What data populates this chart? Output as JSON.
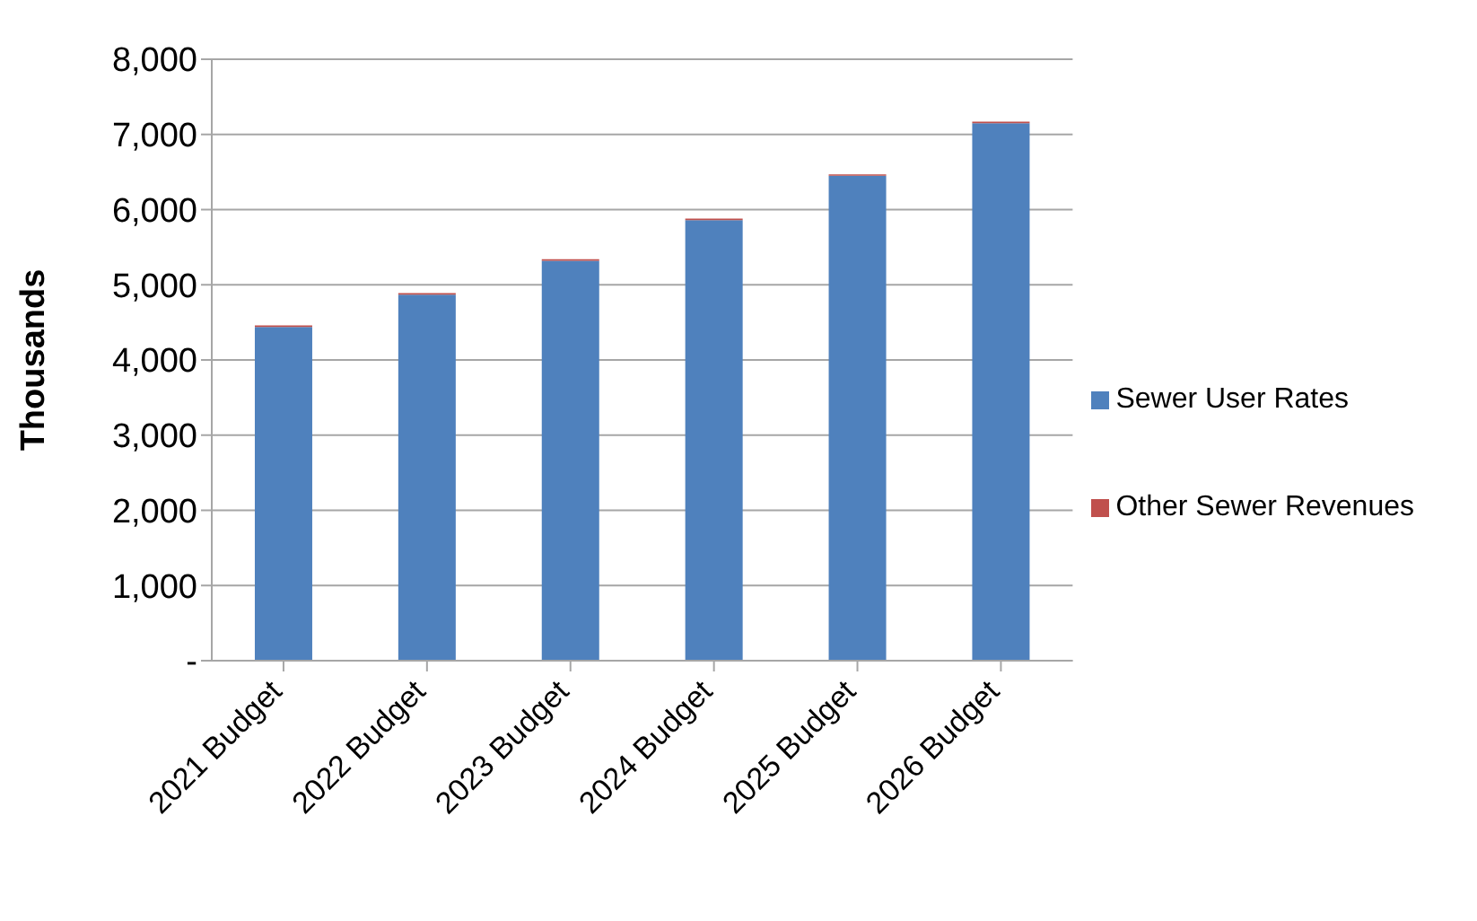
{
  "chart_data": {
    "type": "bar",
    "ylabel": "Thousands",
    "categories": [
      "2021 Budget",
      "2022 Budget",
      "2023 Budget",
      "2024 Budget",
      "2025 Budget",
      "2026 Budget"
    ],
    "series": [
      {
        "name": "Sewer User Rates",
        "color": "#4f81bd",
        "values": [
          4440,
          4870,
          5320,
          5860,
          6450,
          7150
        ]
      },
      {
        "name": "Other Sewer Revenues",
        "color": "#c0504d",
        "values": [
          20,
          20,
          20,
          20,
          20,
          20
        ]
      }
    ],
    "stacked": true,
    "ylim": [
      0,
      8000
    ],
    "yticks": [
      {
        "value": 0,
        "label": "-"
      },
      {
        "value": 1000,
        "label": "1,000"
      },
      {
        "value": 2000,
        "label": "2,000"
      },
      {
        "value": 3000,
        "label": "3,000"
      },
      {
        "value": 4000,
        "label": "4,000"
      },
      {
        "value": 5000,
        "label": "5,000"
      },
      {
        "value": 6000,
        "label": "6,000"
      },
      {
        "value": 7000,
        "label": "7,000"
      },
      {
        "value": 8000,
        "label": "8,000"
      }
    ],
    "grid": "y",
    "legend": "right"
  }
}
